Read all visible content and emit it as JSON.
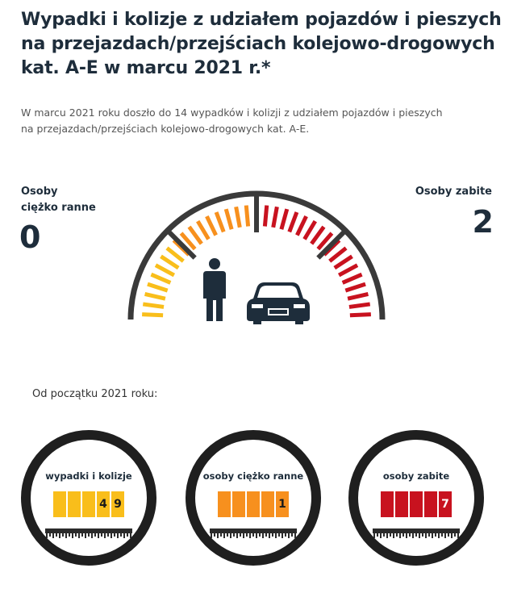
{
  "title": {
    "line1": "Wypadki i kolizje z udziałem pojazdów i pieszych",
    "line2": "na przejazdach/przejściach kolejowo-drogowych",
    "line3": "kat. A-E w marcu 2021 r.*"
  },
  "intro": {
    "line1": "W marcu 2021 roku doszło do 14 wypadków i kolizji z udziałem pojazdów i pieszych",
    "line2": "na przejazdach/przejściach kolejowo-drogowych kat. A-E."
  },
  "injured": {
    "label_line1": "Osoby",
    "label_line2": "ciężko ranne",
    "value": "0"
  },
  "killed": {
    "label": "Osoby zabite",
    "value": "2"
  },
  "gauge": {
    "icons": [
      "person-icon",
      "car-icon"
    ],
    "colors": {
      "yellow": "#f9be1b",
      "orange": "#f7901e",
      "red": "#c8121f",
      "arc": "#3a3a3a"
    }
  },
  "since": "Od początku 2021 roku:",
  "counters": [
    {
      "label": "wypadki i kolizje",
      "digits": [
        "",
        "",
        "",
        "4",
        "9"
      ],
      "color": "#f9be1b"
    },
    {
      "label": "osoby ciężko ranne",
      "digits": [
        "",
        "",
        "",
        "",
        "1"
      ],
      "color": "#f7901e"
    },
    {
      "label": "osoby zabite",
      "digits": [
        "",
        "",
        "",
        "",
        "7"
      ],
      "color": "#c8121f"
    }
  ]
}
